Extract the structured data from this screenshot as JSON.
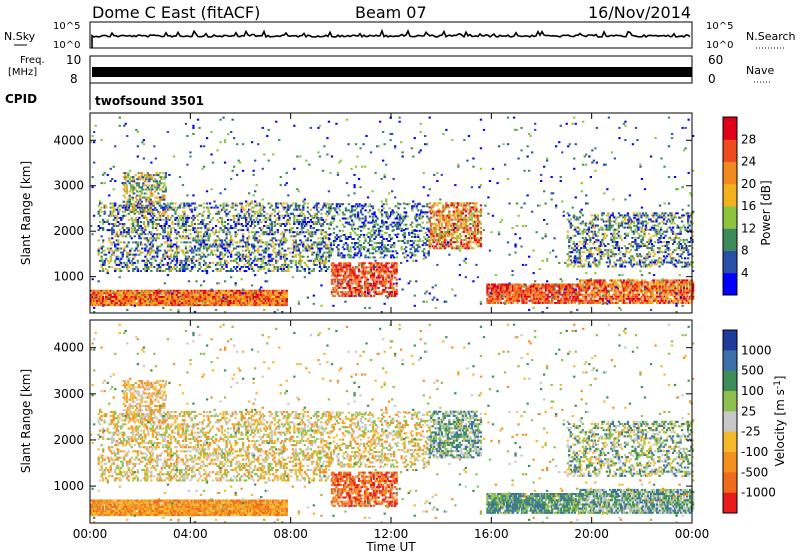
{
  "header": {
    "station": "Dome C East (fitACF)",
    "beam": "Beam 07",
    "date": "16/Nov/2014"
  },
  "top_panels": {
    "nsky_label": "N.Sky",
    "nsky_top": "10^5",
    "nsky_bottom": "10^0",
    "nsearch_label": "N.Search",
    "nsearch_top": "10^5",
    "nsearch_bottom": "10^0",
    "freq_label_1": "Freq.",
    "freq_label_2": "[MHz]",
    "freq_top": "10",
    "freq_bottom": "8",
    "nave_label": "Nave",
    "nave_top": "60",
    "nave_bottom": "0",
    "cpid_label": "CPID",
    "cpid_value": "twofsound 3501"
  },
  "colors": {
    "power": [
      "#0000ff",
      "#2a4fa8",
      "#3d8a5a",
      "#8dc43f",
      "#f1b21e",
      "#f28a1f",
      "#ee4b1e",
      "#e0001a"
    ],
    "velocity": [
      "#1f3b9c",
      "#3d6fa8",
      "#3d8c5a",
      "#8ec04d",
      "#c8c8c8",
      "#f5b828",
      "#f39020",
      "#ef6a1d",
      "#e91c1c"
    ]
  },
  "chart_data": [
    {
      "type": "heatmap",
      "name": "power",
      "ylabel": "Slant Range [km]",
      "xlabel": "Time UT",
      "x_ticks": [
        "00:00",
        "04:00",
        "08:00",
        "12:00",
        "16:00",
        "20:00",
        "00:00"
      ],
      "y_ticks": [
        1000,
        2000,
        3000,
        4000
      ],
      "xlim": [
        0,
        24
      ],
      "ylim": [
        200,
        4600
      ],
      "colorbar_label": "Power [dB]",
      "colorbar_ticks": [
        "4",
        "8",
        "12",
        "16",
        "20",
        "24",
        "28"
      ],
      "clim": [
        0,
        32
      ]
    },
    {
      "type": "heatmap",
      "name": "velocity",
      "ylabel": "Slant Range [km]",
      "xlabel": "Time UT",
      "x_ticks": [
        "00:00",
        "04:00",
        "08:00",
        "12:00",
        "16:00",
        "20:00",
        "00:00"
      ],
      "y_ticks": [
        1000,
        2000,
        3000,
        4000
      ],
      "xlim": [
        0,
        24
      ],
      "ylim": [
        200,
        4600
      ],
      "colorbar_label": "Velocity [m s-1]",
      "colorbar_ticks": [
        "1000",
        "500",
        "100",
        "25",
        "-25",
        "-100",
        "-500",
        "-1000"
      ]
    }
  ]
}
